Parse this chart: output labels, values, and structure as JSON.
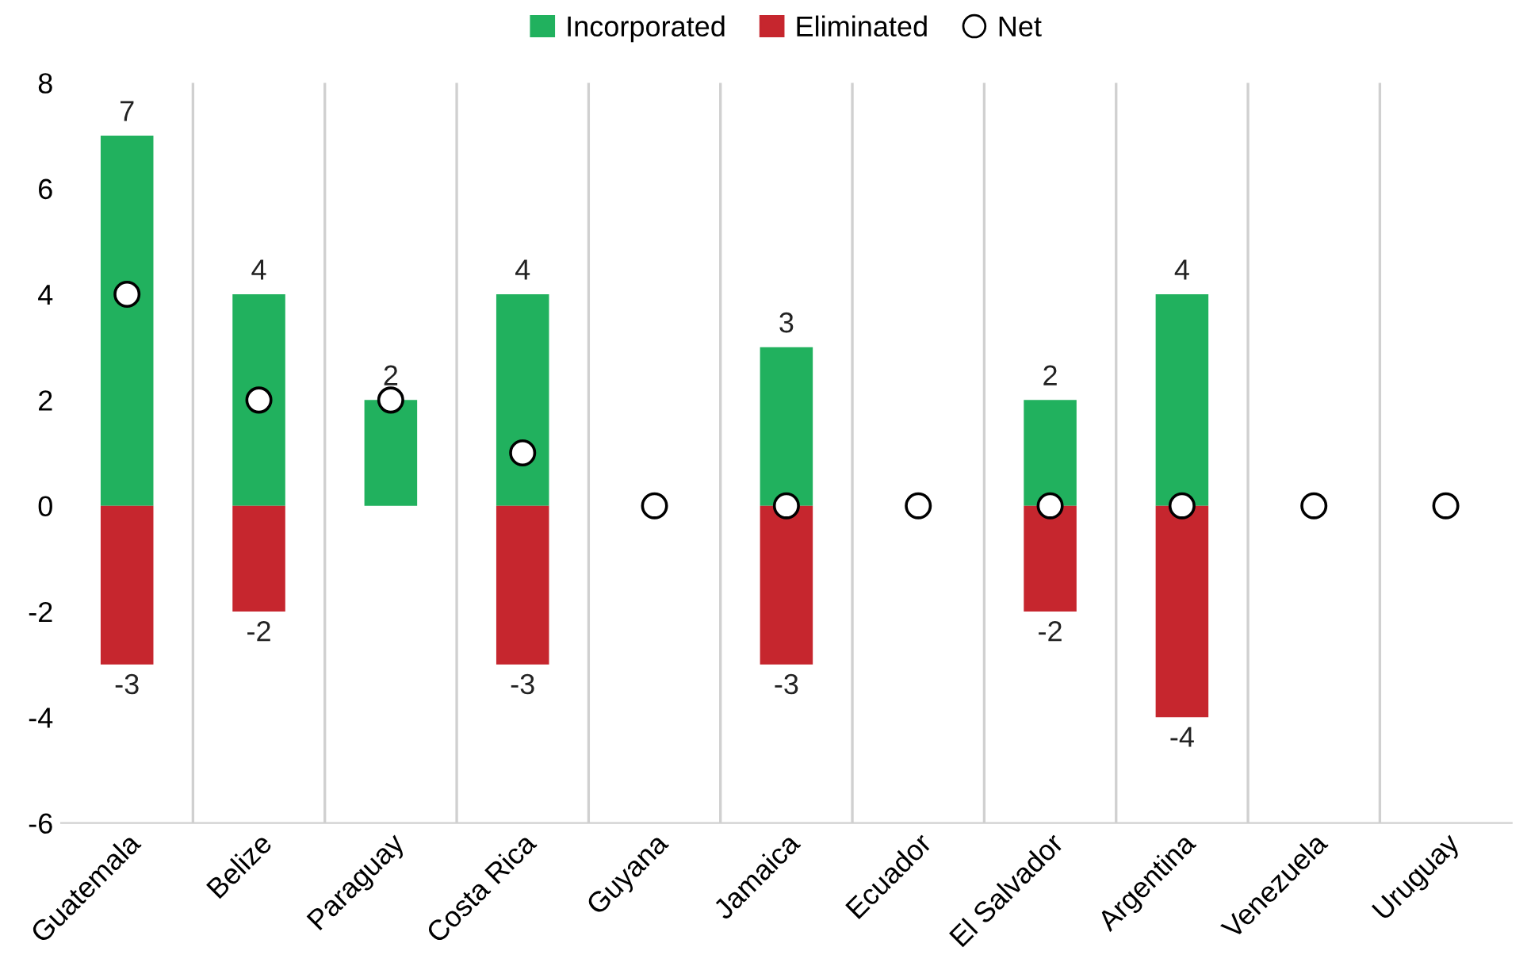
{
  "chart_data": {
    "type": "bar",
    "stacked": true,
    "categories": [
      "Guatemala",
      "Belize",
      "Paraguay",
      "Costa Rica",
      "Guyana",
      "Jamaica",
      "Ecuador",
      "El Salvador",
      "Argentina",
      "Venezuela",
      "Uruguay"
    ],
    "series": [
      {
        "name": "Incorporated",
        "color": "#21b15e",
        "values": [
          7,
          4,
          2,
          4,
          0,
          3,
          0,
          2,
          4,
          0,
          0
        ],
        "value_labels": [
          "7",
          "4",
          "2",
          "4",
          null,
          "3",
          null,
          "2",
          "4",
          null,
          null
        ]
      },
      {
        "name": "Eliminated",
        "color": "#c6262e",
        "values": [
          -3,
          -2,
          0,
          -3,
          0,
          -3,
          0,
          -2,
          -4,
          0,
          0
        ],
        "value_labels": [
          "-3",
          "-2",
          null,
          "-3",
          null,
          "-3",
          null,
          "-2",
          "-4",
          null,
          null
        ]
      },
      {
        "name": "Net",
        "type": "scatter",
        "marker": "circle",
        "color": "#ffffff",
        "values": [
          4,
          2,
          2,
          1,
          0,
          0,
          0,
          0,
          0,
          0,
          0
        ]
      }
    ],
    "ylim": [
      -6,
      8
    ],
    "yticks": [
      -6,
      -4,
      -2,
      0,
      2,
      4,
      6,
      8
    ],
    "grid": "x",
    "legend": "top"
  }
}
